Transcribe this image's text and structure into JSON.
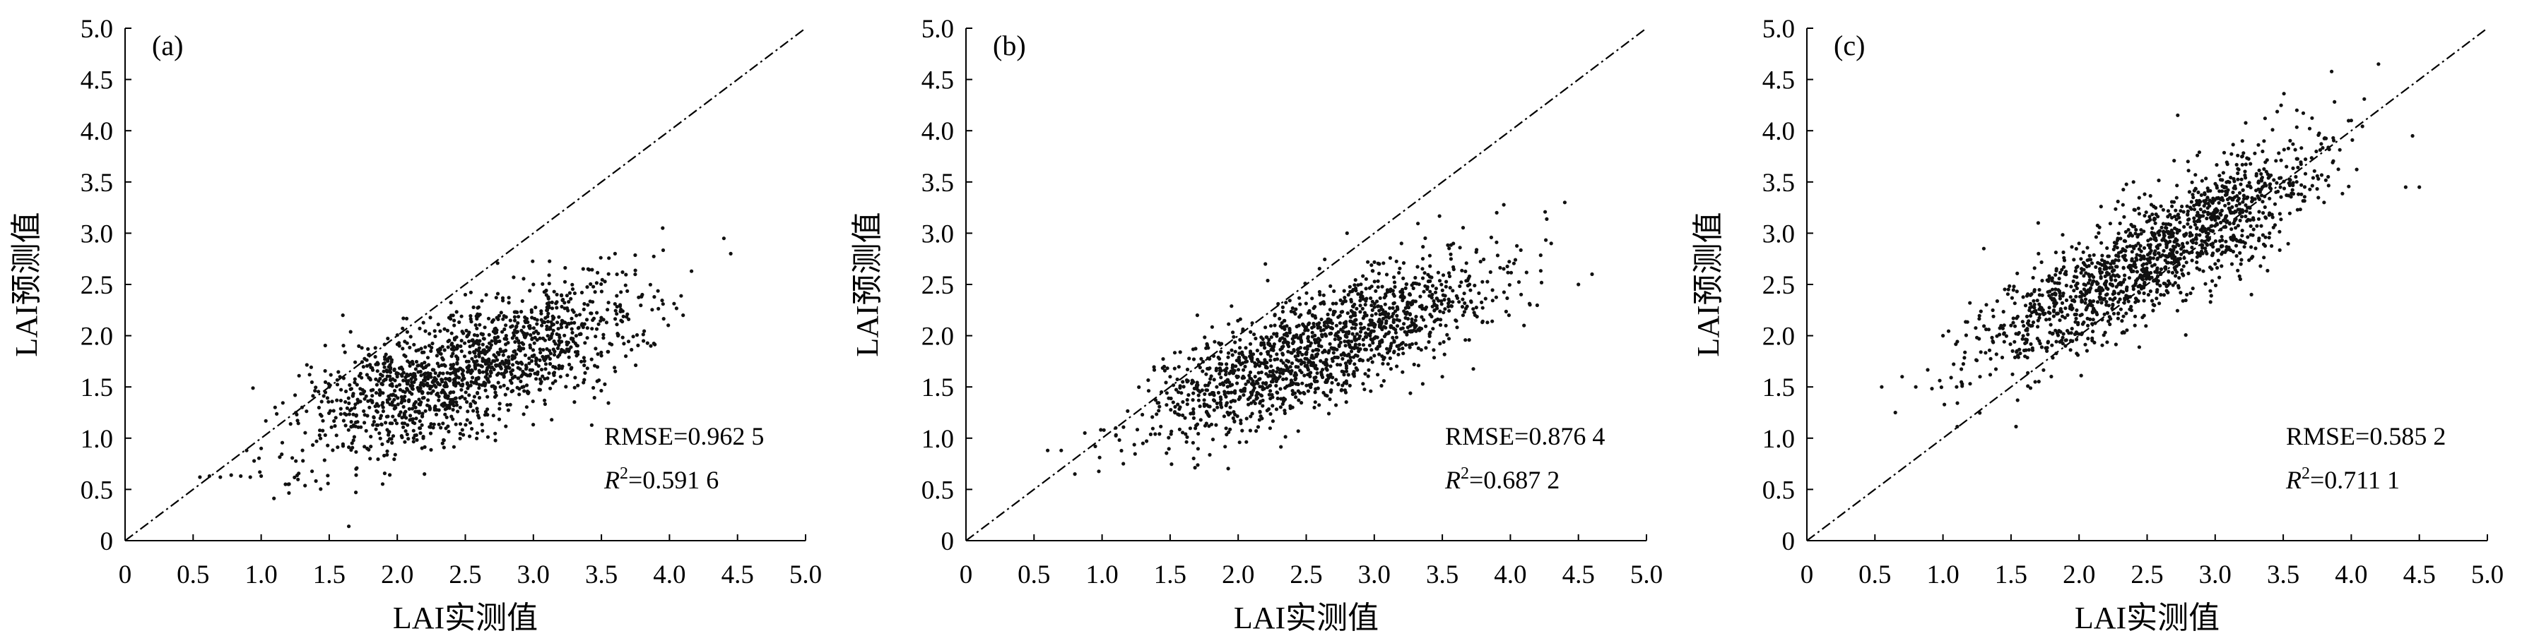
{
  "colors": {
    "axis": "#000000",
    "points": "#111111",
    "reference_line": "#000000"
  },
  "chart_data": [
    {
      "type": "scatter",
      "panel_label": "(a)",
      "xlabel": "LAI实测值",
      "ylabel": "LAI预测值",
      "xlim": [
        0,
        5
      ],
      "ylim": [
        0,
        5
      ],
      "xticks": [
        "0",
        "0.5",
        "1.0",
        "1.5",
        "2.0",
        "2.5",
        "3.0",
        "3.5",
        "4.0",
        "4.5",
        "5.0"
      ],
      "yticks": [
        "0",
        "0.5",
        "1.0",
        "1.5",
        "2.0",
        "2.5",
        "3.0",
        "3.5",
        "4.0",
        "4.5",
        "5.0"
      ],
      "reference_line": "1:1",
      "rmse_text": "RMSE=0.962 5",
      "r2_prefix": "R",
      "r2_sup": "2",
      "r2_value": "=0.591 6",
      "point_cloud": {
        "x_range": [
          0.55,
          4.5
        ],
        "slope": 0.47,
        "intercept": 0.48,
        "spread": 0.3,
        "approx_count": 1500
      },
      "points": [
        [
          0.55,
          0.62
        ],
        [
          0.62,
          0.63
        ],
        [
          0.7,
          0.62
        ],
        [
          0.78,
          0.64
        ],
        [
          0.85,
          0.63
        ],
        [
          0.92,
          0.62
        ],
        [
          1.0,
          0.63
        ],
        [
          1.0,
          0.9
        ],
        [
          1.2,
          0.55
        ],
        [
          1.3,
          1.3
        ],
        [
          1.5,
          1.5
        ],
        [
          1.6,
          2.2
        ],
        [
          1.8,
          0.8
        ],
        [
          2.0,
          1.6
        ],
        [
          2.2,
          0.65
        ],
        [
          2.4,
          1.8
        ],
        [
          2.5,
          2.4
        ],
        [
          2.6,
          1.2
        ],
        [
          2.8,
          2.0
        ],
        [
          3.0,
          2.5
        ],
        [
          3.2,
          1.6
        ],
        [
          3.4,
          2.3
        ],
        [
          3.6,
          2.8
        ],
        [
          3.8,
          2.4
        ],
        [
          3.95,
          3.05
        ],
        [
          4.1,
          2.2
        ],
        [
          4.4,
          2.95
        ],
        [
          4.45,
          2.8
        ]
      ]
    },
    {
      "type": "scatter",
      "panel_label": "(b)",
      "xlabel": "LAI实测值",
      "ylabel": "LAI预测值",
      "xlim": [
        0,
        5
      ],
      "ylim": [
        0,
        5
      ],
      "xticks": [
        "0",
        "0.5",
        "1.0",
        "1.5",
        "2.0",
        "2.5",
        "3.0",
        "3.5",
        "4.0",
        "4.5",
        "5.0"
      ],
      "yticks": [
        "0",
        "0.5",
        "1.0",
        "1.5",
        "2.0",
        "2.5",
        "3.0",
        "3.5",
        "4.0",
        "4.5",
        "5.0"
      ],
      "reference_line": "1:1",
      "rmse_text": "RMSE=0.876 4",
      "r2_prefix": "R",
      "r2_sup": "2",
      "r2_value": "=0.687 2",
      "point_cloud": {
        "x_range": [
          0.6,
          4.6
        ],
        "slope": 0.52,
        "intercept": 0.52,
        "spread": 0.27,
        "approx_count": 1500
      },
      "points": [
        [
          0.6,
          0.88
        ],
        [
          0.7,
          0.88
        ],
        [
          0.8,
          0.65
        ],
        [
          0.95,
          0.92
        ],
        [
          1.1,
          1.1
        ],
        [
          1.3,
          0.95
        ],
        [
          1.5,
          1.6
        ],
        [
          1.7,
          2.2
        ],
        [
          2.0,
          1.6
        ],
        [
          2.2,
          2.7
        ],
        [
          2.4,
          1.3
        ],
        [
          2.6,
          2.4
        ],
        [
          2.8,
          3.0
        ],
        [
          3.0,
          2.1
        ],
        [
          3.2,
          2.9
        ],
        [
          3.5,
          1.6
        ],
        [
          3.7,
          2.5
        ],
        [
          3.9,
          3.2
        ],
        [
          4.1,
          2.1
        ],
        [
          4.3,
          2.9
        ],
        [
          4.4,
          3.3
        ],
        [
          4.5,
          2.5
        ],
        [
          4.6,
          2.6
        ]
      ]
    },
    {
      "type": "scatter",
      "panel_label": "(c)",
      "xlabel": "LAI实测值",
      "ylabel": "LAI预测值",
      "xlim": [
        0,
        5
      ],
      "ylim": [
        0,
        5
      ],
      "xticks": [
        "0",
        "0.5",
        "1.0",
        "1.5",
        "2.0",
        "2.5",
        "3.0",
        "3.5",
        "4.0",
        "4.5",
        "5.0"
      ],
      "yticks": [
        "0",
        "0.5",
        "1.0",
        "1.5",
        "2.0",
        "2.5",
        "3.0",
        "3.5",
        "4.0",
        "4.5",
        "5.0"
      ],
      "reference_line": "1:1",
      "rmse_text": "RMSE=0.585 2",
      "r2_prefix": "R",
      "r2_sup": "2",
      "r2_value": "=0.711 1",
      "point_cloud": {
        "x_range": [
          0.55,
          4.5
        ],
        "slope": 0.72,
        "intercept": 0.95,
        "spread": 0.28,
        "approx_count": 1500
      },
      "points": [
        [
          0.55,
          1.5
        ],
        [
          0.65,
          1.25
        ],
        [
          0.7,
          1.6
        ],
        [
          0.8,
          1.5
        ],
        [
          1.0,
          2.0
        ],
        [
          1.1,
          1.5
        ],
        [
          1.3,
          2.85
        ],
        [
          1.5,
          2.1
        ],
        [
          1.7,
          3.1
        ],
        [
          1.9,
          1.9
        ],
        [
          2.0,
          2.9
        ],
        [
          2.2,
          2.3
        ],
        [
          2.4,
          3.5
        ],
        [
          2.6,
          2.6
        ],
        [
          2.8,
          3.7
        ],
        [
          3.0,
          2.7
        ],
        [
          3.2,
          3.9
        ],
        [
          3.4,
          3.0
        ],
        [
          3.6,
          4.2
        ],
        [
          3.8,
          3.3
        ],
        [
          4.0,
          4.1
        ],
        [
          4.2,
          4.65
        ],
        [
          4.4,
          3.45
        ],
        [
          4.5,
          3.45
        ],
        [
          4.45,
          3.95
        ]
      ]
    }
  ]
}
